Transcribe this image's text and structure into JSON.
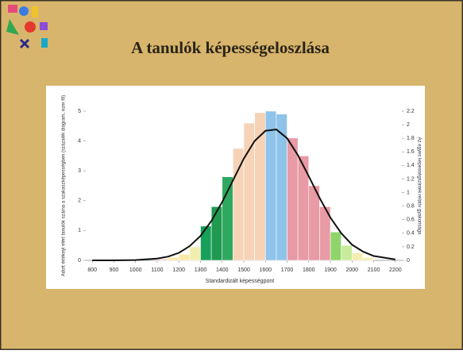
{
  "chart_data": {
    "type": "histogram",
    "title": "A tanulók képességeloszlása",
    "x_label": "Standardizált képességpont",
    "y_label": "Adott értéknyi elért tanulók száma a szakaszképességben (százalék diagram, ezer fő)",
    "y2_label": "Az egyes képességszintek relatív gyakorisága",
    "bins": [
      1100,
      1150,
      1200,
      1250,
      1300,
      1350,
      1400,
      1450,
      1500,
      1550,
      1600,
      1650,
      1700,
      1750,
      1800,
      1850,
      1900,
      1950,
      2000,
      2050,
      2100
    ],
    "counts": [
      0.05,
      0.1,
      0.2,
      0.45,
      1.15,
      1.8,
      2.8,
      3.75,
      4.6,
      4.95,
      5.0,
      4.9,
      4.1,
      3.5,
      2.5,
      1.8,
      0.95,
      0.5,
      0.25,
      0.1
    ],
    "colors": [
      "#f4c7c3",
      "#fbe9a6",
      "#fbe9a6",
      "#f3eeb0",
      "#17a05a",
      "#1f9a50",
      "#2fa85f",
      "#f6d3b6",
      "#f6d3b6",
      "#f6d3b6",
      "#8ec3ea",
      "#8ec3ea",
      "#e89aa5",
      "#e89aa5",
      "#e89aa5",
      "#e89aa5",
      "#8fd46a",
      "#c8ec9a",
      "#f3eeb0",
      "#f3eeb0"
    ],
    "curve": {
      "axis": "y2",
      "color": "#111111",
      "x": [
        800,
        900,
        1000,
        1100,
        1150,
        1200,
        1250,
        1300,
        1350,
        1400,
        1450,
        1500,
        1550,
        1600,
        1650,
        1700,
        1750,
        1800,
        1850,
        1900,
        1950,
        2000,
        2050,
        2100,
        2200
      ],
      "values": [
        0,
        0.0005,
        0.004,
        0.026,
        0.055,
        0.11,
        0.21,
        0.36,
        0.58,
        0.86,
        1.18,
        1.5,
        1.76,
        1.91,
        1.93,
        1.8,
        1.55,
        1.24,
        0.92,
        0.63,
        0.4,
        0.23,
        0.13,
        0.064,
        0.013
      ]
    },
    "xlim": [
      770,
      2230
    ],
    "xticks": [
      800,
      900,
      1000,
      1100,
      1200,
      1300,
      1400,
      1500,
      1600,
      1700,
      1800,
      1900,
      2000,
      2100,
      2200
    ],
    "ylim": [
      0,
      5
    ],
    "yticks": [
      0,
      1,
      2,
      3,
      4,
      5
    ],
    "y2lim": [
      0,
      2.2
    ],
    "y2ticks": [
      0,
      0.2,
      0.4,
      0.6,
      0.8,
      1,
      1.2,
      1.4,
      1.6,
      1.8,
      2,
      2.2
    ]
  }
}
